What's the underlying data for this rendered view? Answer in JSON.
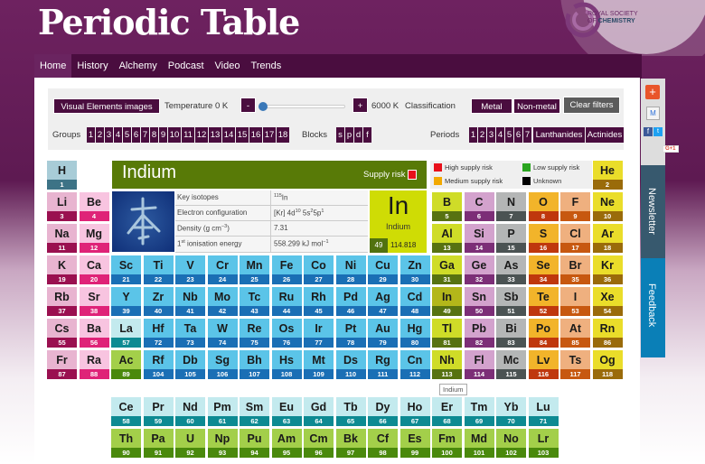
{
  "header": {
    "title": "Periodic Table",
    "logo_line1": "ROYAL SOCIETY",
    "logo_line2": "OF",
    "logo_line3": "CHEMISTRY"
  },
  "nav": [
    "Home",
    "History",
    "Alchemy",
    "Podcast",
    "Video",
    "Trends"
  ],
  "controls": {
    "visual_elements": "Visual Elements images",
    "temperature_label": "Temperature 0 K",
    "minus": "-",
    "plus": "+",
    "temp_max": "6000 K",
    "temperature_value_fraction": 0,
    "classification_label": "Classification",
    "metal": "Metal",
    "nonmetal": "Non-metal",
    "clear": "Clear filters",
    "groups_label": "Groups",
    "groups": [
      "1",
      "2",
      "3",
      "4",
      "5",
      "6",
      "7",
      "8",
      "9",
      "10",
      "11",
      "12",
      "13",
      "14",
      "15",
      "16",
      "17",
      "18"
    ],
    "blocks_label": "Blocks",
    "blocks": [
      "s",
      "p",
      "d",
      "f"
    ],
    "periods_label": "Periods",
    "periods": [
      "1",
      "2",
      "3",
      "4",
      "5",
      "6",
      "7"
    ],
    "lanthanides": "Lanthanides",
    "actinides": "Actinides"
  },
  "info": {
    "name": "Indium",
    "supply_label": "Supply risk",
    "supply_color": "#e8101a",
    "legend": [
      {
        "label": "High supply risk",
        "color": "#e8101a"
      },
      {
        "label": "Low supply risk",
        "color": "#2aa520"
      },
      {
        "label": "Medium supply risk",
        "color": "#f2a900"
      },
      {
        "label": "Unknown",
        "color": "#000000"
      }
    ],
    "rows": [
      {
        "key": "Key isotopes",
        "value_sup": "115",
        "value": "In"
      },
      {
        "key": "Electron configuration",
        "value": "[Kr] 4d",
        "s1": "10",
        "v2": " 5s",
        "s2": "2",
        "v3": "5p",
        "s3": "1"
      },
      {
        "key": "Density (g cm",
        "key_sup": "−3",
        "key_end": ")",
        "value": "7.31"
      },
      {
        "key_sup_pre": "1",
        "key_sup": "st",
        "key": " ionisation energy",
        "value": "558.299 kJ mol",
        "value_sup": "−1"
      }
    ],
    "symbol": "In",
    "number": "49",
    "mass": "114.818"
  },
  "tooltip": "Indium",
  "side": {
    "newsletter": "Newsletter",
    "feedback": "Feedback",
    "gplus": "G+1"
  },
  "colors": {
    "h": [
      "#a8ccd7",
      "#3d7386"
    ],
    "alk": [
      "#e8b4d0",
      "#9a1050"
    ],
    "ae": [
      "#f8c4e0",
      "#df2378"
    ],
    "tm": [
      "#5bc4e8",
      "#1a6fb5"
    ],
    "la": [
      "#c3eaee",
      "#0d8a92"
    ],
    "ac": [
      "#a3cf4a",
      "#4a890c"
    ],
    "g13": [
      "#cfdc28",
      "#577211"
    ],
    "g14": [
      "#d3a2cd",
      "#7c2e77"
    ],
    "g15": [
      "#b4b6b6",
      "#4b5353"
    ],
    "g16": [
      "#f2b42a",
      "#bf370d"
    ],
    "g17": [
      "#efb07f",
      "#c75810"
    ],
    "g18": [
      "#eadd2a",
      "#9a6b0a"
    ],
    "sel": [
      "#b3b71a",
      "#577211"
    ]
  },
  "elements": [
    [
      "H",
      "h"
    ],
    [
      "He",
      "g18"
    ],
    [
      "Li",
      "alk"
    ],
    [
      "Be",
      "ae"
    ],
    [
      "B",
      "g13"
    ],
    [
      "C",
      "g14"
    ],
    [
      "N",
      "g15"
    ],
    [
      "O",
      "g16"
    ],
    [
      "F",
      "g17"
    ],
    [
      "Ne",
      "g18"
    ],
    [
      "Na",
      "alk"
    ],
    [
      "Mg",
      "ae"
    ],
    [
      "Al",
      "g13"
    ],
    [
      "Si",
      "g14"
    ],
    [
      "P",
      "g15"
    ],
    [
      "S",
      "g16"
    ],
    [
      "Cl",
      "g17"
    ],
    [
      "Ar",
      "g18"
    ],
    [
      "K",
      "alk"
    ],
    [
      "Ca",
      "ae"
    ],
    [
      "Sc",
      "tm"
    ],
    [
      "Ti",
      "tm"
    ],
    [
      "V",
      "tm"
    ],
    [
      "Cr",
      "tm"
    ],
    [
      "Mn",
      "tm"
    ],
    [
      "Fe",
      "tm"
    ],
    [
      "Co",
      "tm"
    ],
    [
      "Ni",
      "tm"
    ],
    [
      "Cu",
      "tm"
    ],
    [
      "Zn",
      "tm"
    ],
    [
      "Ga",
      "g13"
    ],
    [
      "Ge",
      "g14"
    ],
    [
      "As",
      "g15"
    ],
    [
      "Se",
      "g16"
    ],
    [
      "Br",
      "g17"
    ],
    [
      "Kr",
      "g18"
    ],
    [
      "Rb",
      "alk"
    ],
    [
      "Sr",
      "ae"
    ],
    [
      "Y",
      "tm"
    ],
    [
      "Zr",
      "tm"
    ],
    [
      "Nb",
      "tm"
    ],
    [
      "Mo",
      "tm"
    ],
    [
      "Tc",
      "tm"
    ],
    [
      "Ru",
      "tm"
    ],
    [
      "Rh",
      "tm"
    ],
    [
      "Pd",
      "tm"
    ],
    [
      "Ag",
      "tm"
    ],
    [
      "Cd",
      "tm"
    ],
    [
      "In",
      "sel"
    ],
    [
      "Sn",
      "g14"
    ],
    [
      "Sb",
      "g15"
    ],
    [
      "Te",
      "g16"
    ],
    [
      "I",
      "g17"
    ],
    [
      "Xe",
      "g18"
    ],
    [
      "Cs",
      "alk"
    ],
    [
      "Ba",
      "ae"
    ],
    [
      "La",
      "la"
    ],
    [
      "Ce",
      "la"
    ],
    [
      "Pr",
      "la"
    ],
    [
      "Nd",
      "la"
    ],
    [
      "Pm",
      "la"
    ],
    [
      "Sm",
      "la"
    ],
    [
      "Eu",
      "la"
    ],
    [
      "Gd",
      "la"
    ],
    [
      "Tb",
      "la"
    ],
    [
      "Dy",
      "la"
    ],
    [
      "Ho",
      "la"
    ],
    [
      "Er",
      "la"
    ],
    [
      "Tm",
      "la"
    ],
    [
      "Yb",
      "la"
    ],
    [
      "Lu",
      "la"
    ],
    [
      "Hf",
      "tm"
    ],
    [
      "Ta",
      "tm"
    ],
    [
      "W",
      "tm"
    ],
    [
      "Re",
      "tm"
    ],
    [
      "Os",
      "tm"
    ],
    [
      "Ir",
      "tm"
    ],
    [
      "Pt",
      "tm"
    ],
    [
      "Au",
      "tm"
    ],
    [
      "Hg",
      "tm"
    ],
    [
      "Tl",
      "g13"
    ],
    [
      "Pb",
      "g14"
    ],
    [
      "Bi",
      "g15"
    ],
    [
      "Po",
      "g16"
    ],
    [
      "At",
      "g17"
    ],
    [
      "Rn",
      "g18"
    ],
    [
      "Fr",
      "alk"
    ],
    [
      "Ra",
      "ae"
    ],
    [
      "Ac",
      "ac"
    ],
    [
      "Th",
      "ac"
    ],
    [
      "Pa",
      "ac"
    ],
    [
      "U",
      "ac"
    ],
    [
      "Np",
      "ac"
    ],
    [
      "Pu",
      "ac"
    ],
    [
      "Am",
      "ac"
    ],
    [
      "Cm",
      "ac"
    ],
    [
      "Bk",
      "ac"
    ],
    [
      "Cf",
      "ac"
    ],
    [
      "Es",
      "ac"
    ],
    [
      "Fm",
      "ac"
    ],
    [
      "Md",
      "ac"
    ],
    [
      "No",
      "ac"
    ],
    [
      "Lr",
      "ac"
    ],
    [
      "Rf",
      "tm"
    ],
    [
      "Db",
      "tm"
    ],
    [
      "Sg",
      "tm"
    ],
    [
      "Bh",
      "tm"
    ],
    [
      "Hs",
      "tm"
    ],
    [
      "Mt",
      "tm"
    ],
    [
      "Ds",
      "tm"
    ],
    [
      "Rg",
      "tm"
    ],
    [
      "Cn",
      "tm"
    ],
    [
      "Nh",
      "g13"
    ],
    [
      "Fl",
      "g14"
    ],
    [
      "Mc",
      "g15"
    ],
    [
      "Lv",
      "g16"
    ],
    [
      "Ts",
      "g17"
    ],
    [
      "Og",
      "g18"
    ]
  ]
}
